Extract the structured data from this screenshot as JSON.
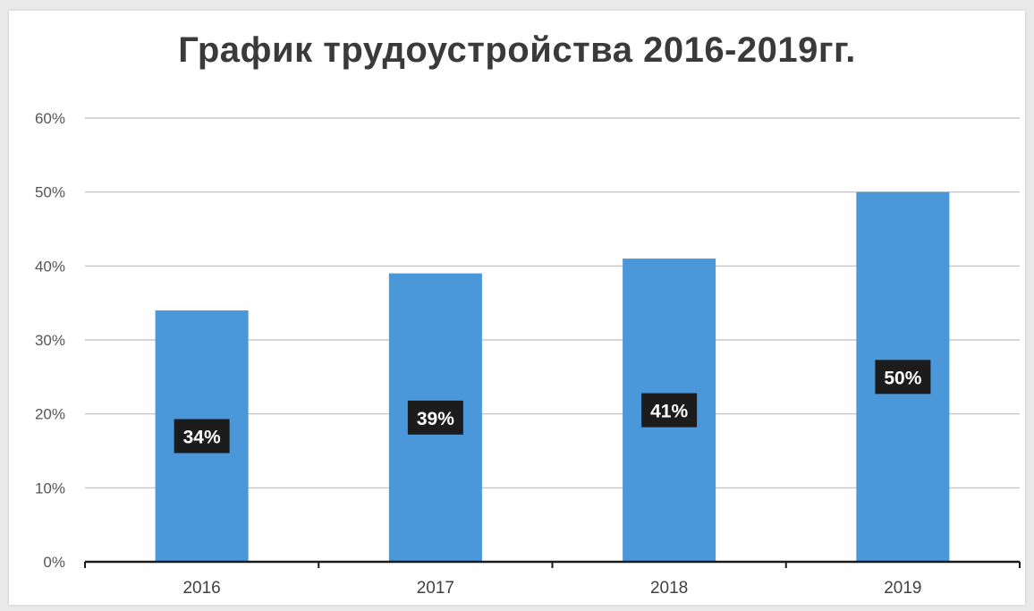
{
  "chart_data": {
    "type": "bar",
    "title": "График трудоустройства 2016-2019гг.",
    "categories": [
      "2016",
      "2017",
      "2018",
      "2019"
    ],
    "values": [
      34,
      39,
      41,
      50
    ],
    "data_labels": [
      "34%",
      "39%",
      "41%",
      "50%"
    ],
    "ylim": [
      0,
      60
    ],
    "yticks": [
      0,
      10,
      20,
      30,
      40,
      50,
      60
    ],
    "ytick_labels": [
      "0%",
      "10%",
      "20%",
      "30%",
      "40%",
      "50%",
      "60%"
    ],
    "grid": true,
    "colors": {
      "bar": "#4a97da",
      "label_bg": "#1c1c1c",
      "label_text": "#ffffff",
      "grid": "#bdbdbd",
      "axis": "#1a1a1a",
      "text": "#555555"
    }
  }
}
